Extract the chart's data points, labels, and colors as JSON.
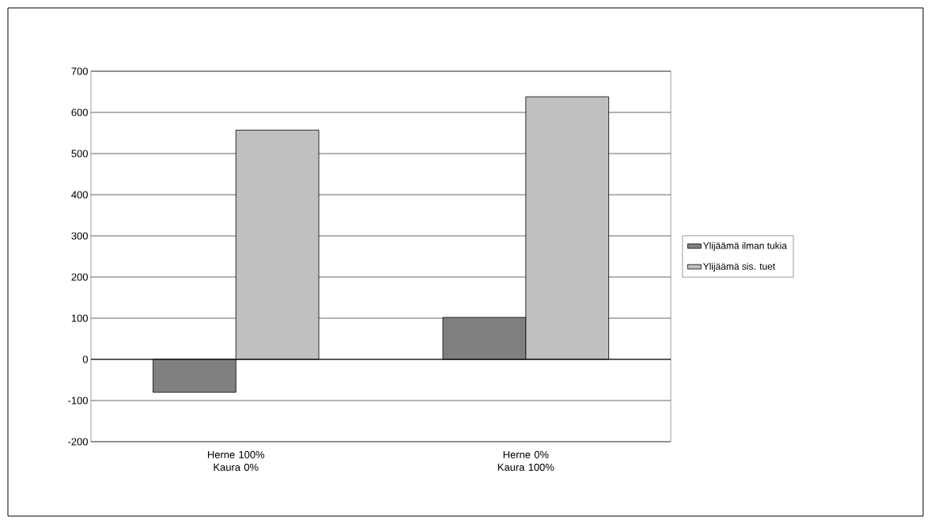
{
  "chart_data": {
    "type": "bar",
    "categories": [
      "Herne 100% Kaura 0%",
      "Herne 0% Kaura 100%"
    ],
    "series": [
      {
        "name": "Ylijäämä ilman tukia",
        "color": "#808080",
        "values": [
          -80,
          102
        ]
      },
      {
        "name": "Ylijäämä sis. tuet",
        "color": "#c0c0c0",
        "values": [
          557,
          638
        ]
      }
    ],
    "ylim": [
      -200,
      700
    ],
    "yticks": [
      -200,
      -100,
      0,
      100,
      200,
      300,
      400,
      500,
      600,
      700
    ],
    "grid": "y",
    "legend": "right"
  }
}
